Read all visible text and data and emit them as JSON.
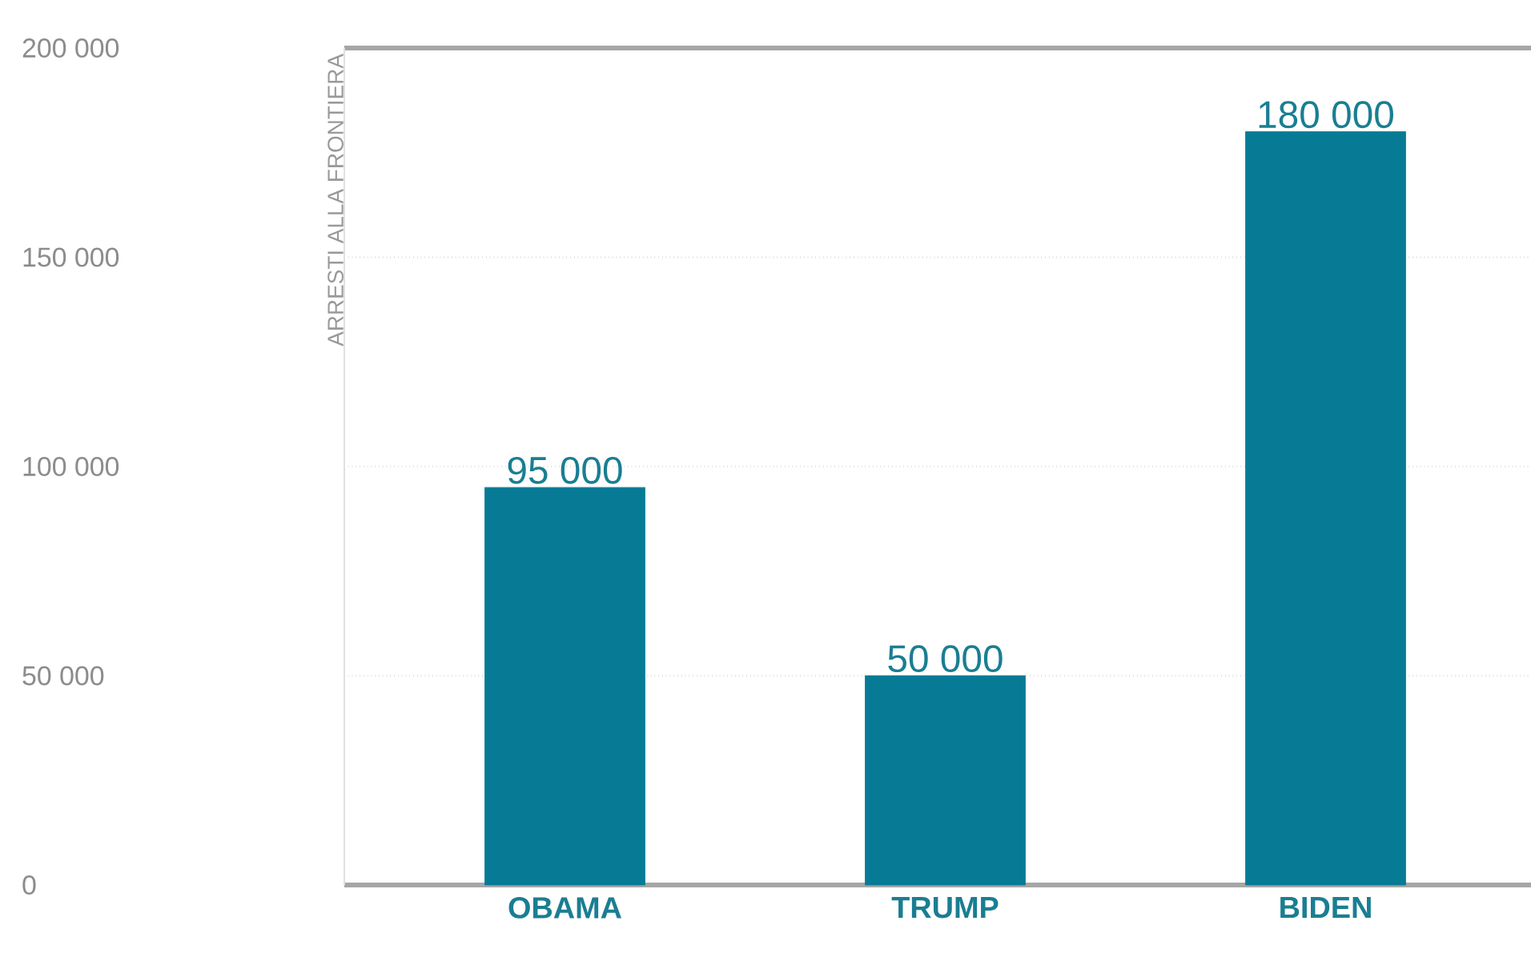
{
  "chart_data": {
    "type": "bar",
    "ylabel": "ARRESTI ALLA FRONTIERA",
    "categories": [
      "OBAMA",
      "TRUMP",
      "BIDEN"
    ],
    "values": [
      95000,
      50000,
      180000
    ],
    "value_labels": [
      "95 000",
      "50 000",
      "180 000"
    ],
    "color": "#077b96",
    "ylim": [
      0,
      200000
    ],
    "yticks": [
      {
        "value": 0,
        "label": "0"
      },
      {
        "value": 50000,
        "label": "50 000"
      },
      {
        "value": 100000,
        "label": "100 000"
      },
      {
        "value": 150000,
        "label": "150 000"
      },
      {
        "value": 200000,
        "label": "200 000"
      }
    ],
    "grid": "y"
  }
}
